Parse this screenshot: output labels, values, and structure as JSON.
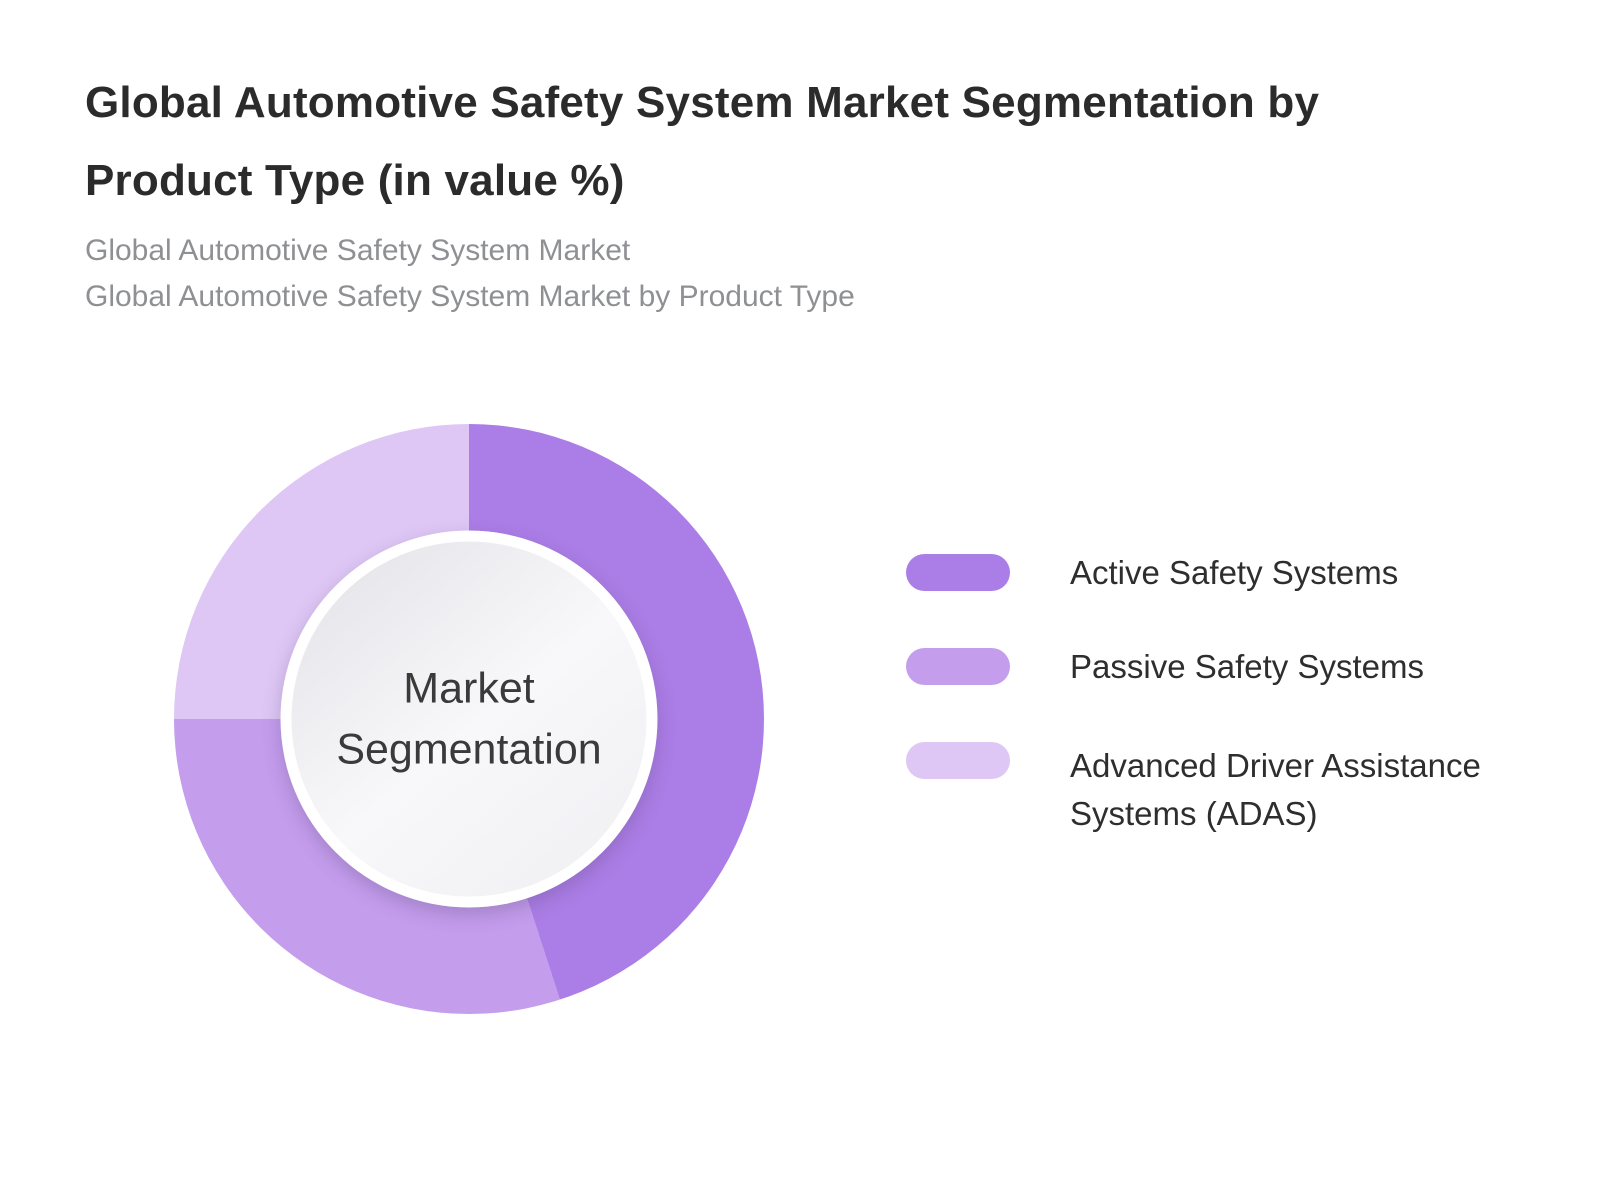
{
  "header": {
    "title_line1": "Global Automotive Safety System Market Segmentation by",
    "title_line2": "Product Type (in value %)",
    "subtitle_line1": "Global Automotive Safety System Market",
    "subtitle_line2": "Global Automotive Safety System Market by Product Type"
  },
  "chart_data": {
    "type": "pie",
    "variant": "donut",
    "title": "Global Automotive Safety System Market Segmentation by Product Type (in value %)",
    "unit": "%",
    "start_angle_deg": 0,
    "direction": "clockwise",
    "legend_position": "right",
    "center_label_line1": "Market",
    "center_label_line2": "Segmentation",
    "categories": [
      "Active Safety Systems",
      "Passive Safety Systems",
      "Advanced Driver Assistance Systems (ADAS)"
    ],
    "values": [
      45,
      30,
      25
    ],
    "segments": [
      {
        "label": "Active Safety Systems",
        "value": 45,
        "color": "#ab7de6"
      },
      {
        "label": "Passive Safety Systems",
        "value": 30,
        "color": "#c49ded"
      },
      {
        "label": "Advanced Driver Assistance Systems (ADAS)",
        "value": 25,
        "color": "#dec7f5"
      }
    ]
  }
}
